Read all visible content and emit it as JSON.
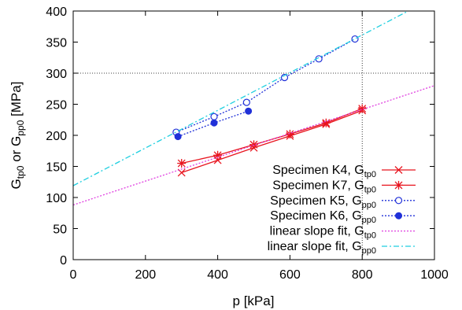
{
  "chart_data": {
    "type": "line",
    "title": "",
    "xlabel": "p [kPa]",
    "ylabel": {
      "main": "G",
      "sub1": "tp0",
      "mid": " or G",
      "sub2": "pp0",
      "tail": " [MPa]"
    },
    "xlim": [
      0,
      1000
    ],
    "ylim": [
      0,
      400
    ],
    "xticks": [
      "0",
      "200",
      "400",
      "600",
      "800",
      "1000"
    ],
    "yticks": [
      "0",
      "50",
      "100",
      "150",
      "200",
      "250",
      "300",
      "350",
      "400"
    ],
    "grid": "dotted lines at y=300 and x=800",
    "legend_position": "bottom-right",
    "series": [
      {
        "name": "Specimen K4, G",
        "name_sub": "tp0",
        "color": "#e8141e",
        "marker": "x",
        "line": "solid",
        "points": [
          [
            300,
            140
          ],
          [
            400,
            160
          ],
          [
            500,
            180
          ],
          [
            600,
            199
          ],
          [
            700,
            218
          ],
          [
            800,
            240
          ]
        ]
      },
      {
        "name": "Specimen K7, G",
        "name_sub": "tp0",
        "color": "#e8141e",
        "marker": "asterisk",
        "line": "solid",
        "points": [
          [
            300,
            155
          ],
          [
            400,
            168
          ],
          [
            500,
            185
          ],
          [
            600,
            202
          ],
          [
            700,
            220
          ],
          [
            800,
            243
          ]
        ]
      },
      {
        "name": "Specimen K5, G",
        "name_sub": "pp0",
        "color": "#2030d8",
        "marker": "circle-open",
        "line": "dotted",
        "points": [
          [
            285,
            205
          ],
          [
            390,
            230
          ],
          [
            480,
            253
          ],
          [
            585,
            293
          ],
          [
            680,
            323
          ],
          [
            780,
            355
          ]
        ]
      },
      {
        "name": "Specimen K6, G",
        "name_sub": "pp0",
        "color": "#2030d8",
        "marker": "circle-filled",
        "line": "dotted",
        "points": [
          [
            290,
            198
          ],
          [
            390,
            220
          ],
          [
            485,
            239
          ]
        ]
      },
      {
        "name": "linear slope fit, G",
        "name_sub": "tp0",
        "color": "#e040e0",
        "marker": "none",
        "line": "dotted",
        "points": [
          [
            0,
            88
          ],
          [
            1000,
            280
          ]
        ]
      },
      {
        "name": "linear slope fit, G",
        "name_sub": "pp0",
        "color": "#1ecfe0",
        "marker": "none",
        "line": "dash-dot",
        "points": [
          [
            0,
            119
          ],
          [
            1000,
            422
          ]
        ]
      }
    ]
  }
}
